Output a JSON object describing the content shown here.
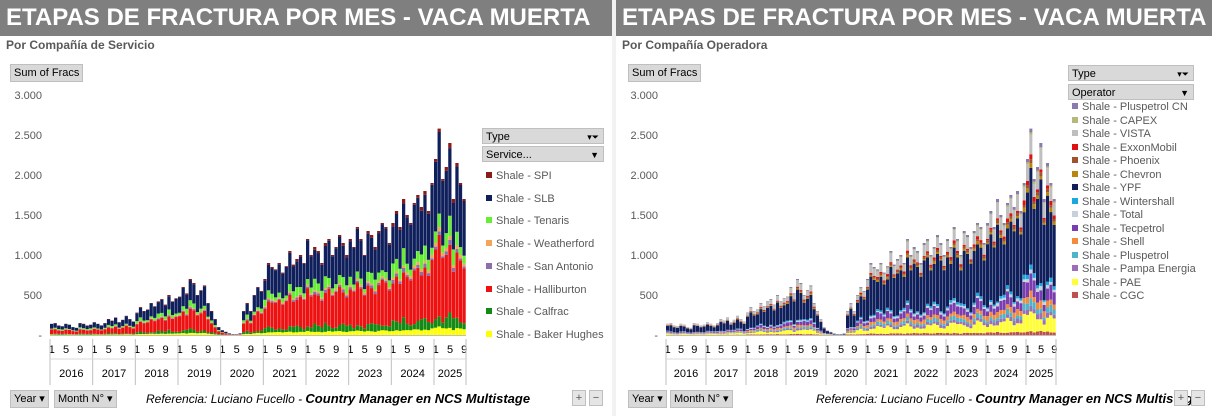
{
  "left": {
    "title": "ETAPAS DE FRACTURA POR MES -  VACA MUERTA",
    "subtitle": "Por Compañía de Servicio",
    "sum_label": "Sum of Fracs",
    "filter_type": "Type",
    "filter_field": "Service...",
    "year_btn": "Year",
    "month_btn": "Month N°",
    "ref_prefix": "Referencia:  Luciano Fucello - ",
    "ref_main": "Country Manager en NCS Multistage",
    "legend": [
      {
        "name": "Shale - SPI",
        "color": "#8b1a1a"
      },
      {
        "name": "Shale - SLB",
        "color": "#0f1f5c"
      },
      {
        "name": "Shale - Tenaris",
        "color": "#66ee33"
      },
      {
        "name": "Shale - Weatherford",
        "color": "#f4a55a"
      },
      {
        "name": "Shale - San Antonio",
        "color": "#8a6fa8"
      },
      {
        "name": "Shale - Halliburton",
        "color": "#ee1111"
      },
      {
        "name": "Shale - Calfrac",
        "color": "#138a13"
      },
      {
        "name": "Shale - Baker Hughes",
        "color": "#ffff00"
      }
    ]
  },
  "right": {
    "title": "ETAPAS DE FRACTURA POR MES -  VACA MUERTA",
    "subtitle": "Por Compañía Operadora",
    "sum_label": "Sum of Fracs",
    "filter_type": "Type",
    "filter_field": "Operator",
    "year_btn": "Year",
    "month_btn": "Month N°",
    "ref_prefix": "Referencia:  Luciano Fucello - ",
    "ref_main": "Country Manager en NCS Multistage",
    "legend": [
      {
        "name": "Shale - Pluspetrol CN",
        "color": "#8a7ab0"
      },
      {
        "name": "Shale - CAPEX",
        "color": "#b5b87a"
      },
      {
        "name": "Shale - VISTA",
        "color": "#bfbfbf"
      },
      {
        "name": "Shale - ExxonMobil",
        "color": "#dd1111"
      },
      {
        "name": "Shale - Phoenix",
        "color": "#a0522d"
      },
      {
        "name": "Shale - Chevron",
        "color": "#b8860b"
      },
      {
        "name": "Shale - YPF",
        "color": "#0f1f5c"
      },
      {
        "name": "Shale - Wintershall",
        "color": "#1aa7e0"
      },
      {
        "name": "Shale - Total",
        "color": "#c8d0dc"
      },
      {
        "name": "Shale - Tecpetrol",
        "color": "#7a3db0"
      },
      {
        "name": "Shale - Shell",
        "color": "#f28c3c"
      },
      {
        "name": "Shale - Pluspetrol",
        "color": "#4fb3c9"
      },
      {
        "name": "Shale - Pampa Energia",
        "color": "#9b6fb8"
      },
      {
        "name": "Shale - PAE",
        "color": "#ffff33"
      },
      {
        "name": "Shale - CGC",
        "color": "#c0504d"
      }
    ]
  },
  "chart_data": [
    {
      "type": "bar",
      "stacked": true,
      "title": "ETAPAS DE FRACTURA POR MES -  VACA MUERTA",
      "subtitle": "Por Compañía de Servicio",
      "ylim": [
        0,
        3000
      ],
      "y_ticks": [
        "3.000",
        "2.500",
        "2.000",
        "1.500",
        "1.000",
        "500",
        "-"
      ],
      "years": [
        "2016",
        "2017",
        "2018",
        "2019",
        "2020",
        "2021",
        "2022",
        "2023",
        "2024",
        "2025"
      ],
      "month_ticks": [
        "1",
        "5",
        "9"
      ],
      "months_per_year": [
        12,
        12,
        12,
        12,
        12,
        12,
        12,
        12,
        12,
        9
      ],
      "totals": [
        140,
        150,
        120,
        110,
        140,
        130,
        100,
        90,
        150,
        140,
        120,
        130,
        160,
        140,
        120,
        150,
        200,
        180,
        220,
        160,
        190,
        240,
        200,
        170,
        280,
        350,
        300,
        320,
        400,
        360,
        420,
        450,
        380,
        500,
        420,
        460,
        480,
        600,
        520,
        700,
        650,
        500,
        560,
        620,
        400,
        300,
        200,
        100,
        60,
        40,
        20,
        10,
        10,
        20,
        300,
        400,
        300,
        500,
        600,
        550,
        700,
        900,
        850,
        820,
        900,
        780,
        860,
        1050,
        880,
        950,
        1000,
        900,
        1200,
        1000,
        1100,
        1050,
        900,
        1150,
        1200,
        1000,
        1100,
        1250,
        1150,
        1000,
        1200,
        1100,
        1350,
        1200,
        1000,
        1300,
        1250,
        1100,
        1300,
        1400,
        1350,
        1150,
        1400,
        1550,
        1350,
        1700,
        1500,
        1400,
        1650,
        1750,
        1600,
        1800,
        1550,
        1900,
        2200,
        2580,
        1950,
        2100,
        2400,
        1700,
        2150,
        1900,
        1700
      ],
      "series": [
        {
          "name": "Shale - SPI",
          "color": "#8b1a1a",
          "share": 0.02
        },
        {
          "name": "Shale - SLB",
          "color": "#0f1f5c",
          "share": 0.38
        },
        {
          "name": "Shale - Tenaris",
          "color": "#66ee33",
          "share": 0.08
        },
        {
          "name": "Shale - Weatherford",
          "color": "#f4a55a",
          "share": 0.02
        },
        {
          "name": "Shale - San Antonio",
          "color": "#8a6fa8",
          "share": 0.02
        },
        {
          "name": "Shale - Halliburton",
          "color": "#ee1111",
          "share": 0.38
        },
        {
          "name": "Shale - Calfrac",
          "color": "#138a13",
          "share": 0.06
        },
        {
          "name": "Shale - Baker Hughes",
          "color": "#ffff00",
          "share": 0.04
        }
      ]
    },
    {
      "type": "bar",
      "stacked": true,
      "title": "ETAPAS DE FRACTURA POR MES -  VACA MUERTA",
      "subtitle": "Por Compañía Operadora",
      "ylim": [
        0,
        3000
      ],
      "y_ticks": [
        "3.000",
        "2.500",
        "2.000",
        "1.500",
        "1.000",
        "500",
        "-"
      ],
      "years": [
        "2016",
        "2017",
        "2018",
        "2019",
        "2020",
        "2021",
        "2022",
        "2023",
        "2024",
        "2025"
      ],
      "month_ticks": [
        "1",
        "5",
        "9"
      ],
      "months_per_year": [
        12,
        12,
        12,
        12,
        12,
        12,
        12,
        12,
        12,
        9
      ],
      "totals": [
        140,
        150,
        120,
        110,
        140,
        130,
        100,
        90,
        150,
        140,
        120,
        130,
        160,
        140,
        120,
        150,
        200,
        180,
        220,
        160,
        190,
        240,
        200,
        170,
        280,
        350,
        300,
        320,
        400,
        360,
        420,
        450,
        380,
        500,
        420,
        460,
        480,
        600,
        520,
        700,
        650,
        500,
        560,
        620,
        400,
        300,
        200,
        100,
        60,
        40,
        20,
        10,
        10,
        20,
        300,
        400,
        300,
        500,
        600,
        550,
        700,
        900,
        850,
        820,
        900,
        780,
        860,
        1050,
        880,
        950,
        1000,
        900,
        1200,
        1000,
        1100,
        1050,
        900,
        1150,
        1200,
        1000,
        1100,
        1250,
        1150,
        1000,
        1200,
        1100,
        1350,
        1200,
        1000,
        1300,
        1250,
        1100,
        1300,
        1400,
        1350,
        1150,
        1400,
        1550,
        1350,
        1700,
        1500,
        1400,
        1650,
        1750,
        1600,
        1800,
        1550,
        1900,
        2200,
        2580,
        1950,
        2100,
        2400,
        1700,
        2150,
        1900,
        1700
      ],
      "series": [
        {
          "name": "Shale - Pluspetrol CN",
          "color": "#8a7ab0",
          "share": 0.02
        },
        {
          "name": "Shale - CAPEX",
          "color": "#b5b87a",
          "share": 0.01
        },
        {
          "name": "Shale - VISTA",
          "color": "#bfbfbf",
          "share": 0.1
        },
        {
          "name": "Shale - ExxonMobil",
          "color": "#dd1111",
          "share": 0.02
        },
        {
          "name": "Shale - Phoenix",
          "color": "#a0522d",
          "share": 0.02
        },
        {
          "name": "Shale - Chevron",
          "color": "#b8860b",
          "share": 0.02
        },
        {
          "name": "Shale - YPF",
          "color": "#0f1f5c",
          "share": 0.5
        },
        {
          "name": "Shale - Wintershall",
          "color": "#1aa7e0",
          "share": 0.02
        },
        {
          "name": "Shale - Total",
          "color": "#c8d0dc",
          "share": 0.02
        },
        {
          "name": "Shale - Tecpetrol",
          "color": "#7a3db0",
          "share": 0.07
        },
        {
          "name": "Shale - Shell",
          "color": "#f28c3c",
          "share": 0.04
        },
        {
          "name": "Shale - Pluspetrol",
          "color": "#4fb3c9",
          "share": 0.03
        },
        {
          "name": "Shale - Pampa Energia",
          "color": "#9b6fb8",
          "share": 0.03
        },
        {
          "name": "Shale - PAE",
          "color": "#ffff33",
          "share": 0.08
        },
        {
          "name": "Shale - CGC",
          "color": "#c0504d",
          "share": 0.02
        }
      ]
    }
  ]
}
